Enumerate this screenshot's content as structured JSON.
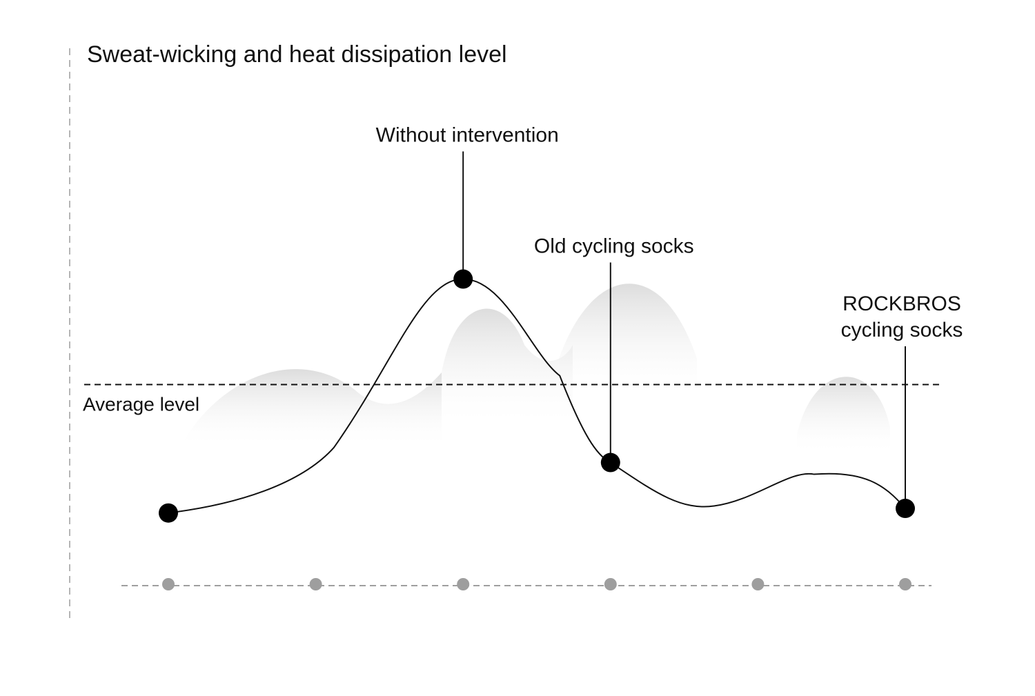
{
  "chart_data": {
    "type": "line",
    "title": "Sweat-wicking and heat dissipation level",
    "xlabel": "",
    "ylabel": "",
    "ylim": [
      0,
      10
    ],
    "grid": false,
    "reference_line": {
      "label": "Average level",
      "value": 5
    },
    "points": [
      {
        "x": 0,
        "y": 2.2
      },
      {
        "x": 2,
        "y": 7.3,
        "label": "Without intervention"
      },
      {
        "x": 3,
        "y": 3.3,
        "label": "Old cycling socks"
      },
      {
        "x": 5,
        "y": 2.3,
        "label_lines": [
          "ROCKBROS",
          "cycling socks"
        ]
      }
    ],
    "x_ticks": [
      0,
      1,
      2,
      3,
      4,
      5
    ],
    "colors": {
      "line": "#111111",
      "marker": "#000000",
      "tick_dot": "#9e9e9e",
      "axis": "#b5b5b5",
      "mountain": "#e6e6e6"
    }
  }
}
